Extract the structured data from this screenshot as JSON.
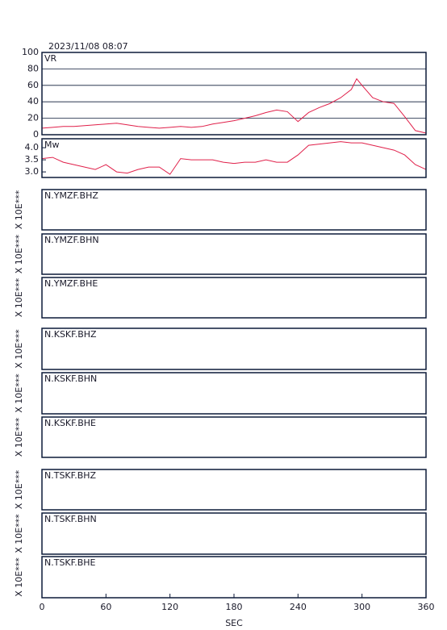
{
  "chart_data": [
    {
      "type": "line",
      "title": "2023/11/08  08:07",
      "label": "VR",
      "xlim": [
        0,
        360
      ],
      "ylim": [
        0,
        100
      ],
      "yticks": [
        0,
        20,
        40,
        60,
        80,
        100
      ],
      "grid": true,
      "x": [
        0,
        10,
        20,
        30,
        40,
        50,
        60,
        70,
        80,
        90,
        100,
        110,
        120,
        130,
        140,
        150,
        160,
        170,
        180,
        190,
        200,
        210,
        220,
        230,
        240,
        250,
        260,
        270,
        280,
        290,
        295,
        300,
        310,
        320,
        330,
        340,
        350,
        360
      ],
      "series": [
        {
          "color": "#e0204a",
          "values": [
            8,
            9,
            10,
            10,
            11,
            12,
            13,
            14,
            12,
            10,
            9,
            8,
            9,
            10,
            9,
            10,
            13,
            15,
            17,
            20,
            23,
            27,
            30,
            28,
            16,
            27,
            33,
            38,
            45,
            55,
            68,
            60,
            45,
            40,
            38,
            22,
            5,
            2
          ]
        }
      ]
    },
    {
      "type": "line",
      "label": "Mw",
      "xlim": [
        0,
        360
      ],
      "ylim": [
        2.77,
        4.37
      ],
      "yticks": [
        {
          "value": 3,
          "label": "3.0"
        },
        {
          "value": 3.5,
          "label": "3.5"
        },
        {
          "value": 4,
          "label": "4.0"
        }
      ],
      "grid": false,
      "x": [
        0,
        10,
        20,
        30,
        40,
        50,
        60,
        70,
        80,
        90,
        100,
        110,
        120,
        130,
        140,
        150,
        160,
        170,
        180,
        190,
        200,
        210,
        220,
        230,
        240,
        250,
        260,
        270,
        280,
        290,
        300,
        310,
        320,
        330,
        340,
        350,
        360
      ],
      "series": [
        {
          "color": "#e0204a",
          "values": [
            3.55,
            3.6,
            3.4,
            3.3,
            3.2,
            3.1,
            3.3,
            3.0,
            2.95,
            3.1,
            3.2,
            3.2,
            2.9,
            3.55,
            3.5,
            3.5,
            3.5,
            3.4,
            3.35,
            3.4,
            3.4,
            3.5,
            3.4,
            3.4,
            3.7,
            4.1,
            4.15,
            4.2,
            4.25,
            4.2,
            4.2,
            4.1,
            4.0,
            3.9,
            3.7,
            3.3,
            3.1
          ]
        }
      ]
    },
    {
      "type": "line",
      "label": "N.YMZF.BHZ",
      "ylabel": "X 10E***",
      "xlim": [
        0,
        360
      ]
    },
    {
      "type": "line",
      "label": "N.YMZF.BHN",
      "ylabel": "X 10E***",
      "xlim": [
        0,
        360
      ]
    },
    {
      "type": "line",
      "label": "N.YMZF.BHE",
      "ylabel": "X 10E***",
      "xlim": [
        0,
        360
      ]
    },
    {
      "type": "line",
      "label": "N.KSKF.BHZ",
      "ylabel": "X 10E***",
      "xlim": [
        0,
        360
      ]
    },
    {
      "type": "line",
      "label": "N.KSKF.BHN",
      "ylabel": "X 10E***",
      "xlim": [
        0,
        360
      ]
    },
    {
      "type": "line",
      "label": "N.KSKF.BHE",
      "ylabel": "X 10E***",
      "xlim": [
        0,
        360
      ]
    },
    {
      "type": "line",
      "label": "N.TSKF.BHZ",
      "ylabel": "X 10E***",
      "xlim": [
        0,
        360
      ]
    },
    {
      "type": "line",
      "label": "N.TSKF.BHN",
      "ylabel": "X 10E***",
      "xlim": [
        0,
        360
      ]
    },
    {
      "type": "line",
      "label": "N.TSKF.BHE",
      "ylabel": "X 10E***",
      "xlim": [
        0,
        360
      ],
      "xlabel": "SEC",
      "xticks": [
        0,
        60,
        120,
        180,
        240,
        300,
        360
      ]
    }
  ]
}
